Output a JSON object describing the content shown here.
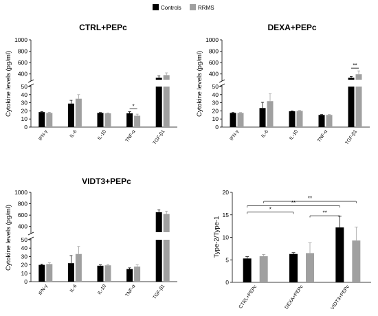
{
  "colors": {
    "controls": "#000000",
    "rrms": "#a0a0a0",
    "axis": "#000000"
  },
  "legend": {
    "controls": "Controls",
    "rrms": "RRMS"
  },
  "chart_data": [
    {
      "type": "bar",
      "title": "CTRL+PEPc",
      "ylabel": "Cytokine levels (pg/ml)",
      "categories": [
        "IFN-γ",
        "IL-6",
        "IL-10",
        "TNF-α",
        "TGF-β1"
      ],
      "y_ticks_lower": [
        "0",
        "10",
        "20",
        "30",
        "40",
        "50"
      ],
      "y_ticks_upper": [
        "400",
        "600",
        "800",
        "1000"
      ],
      "ylim_lower": [
        0,
        50
      ],
      "ylim_upper": [
        300,
        1000
      ],
      "series": [
        {
          "name": "Controls",
          "values": [
            18.5,
            29,
            17.5,
            17,
            335
          ],
          "errors": [
            0.5,
            4,
            0.5,
            2,
            30
          ]
        },
        {
          "name": "RRMS",
          "values": [
            17.5,
            35,
            17,
            14,
            380
          ],
          "errors": [
            0.8,
            5,
            0.5,
            2,
            40
          ]
        }
      ],
      "significance": [
        {
          "category": "TNF-α",
          "label": "*"
        }
      ]
    },
    {
      "type": "bar",
      "title": "DEXA+PEPc",
      "ylabel": "Cytokine levels (pg/ml)",
      "categories": [
        "IFN-γ",
        "IL-6",
        "IL-10",
        "TNF-α",
        "TGF-β1"
      ],
      "y_ticks_lower": [
        "0",
        "10",
        "20",
        "30",
        "40",
        "50"
      ],
      "y_ticks_upper": [
        "400",
        "600",
        "800",
        "1000"
      ],
      "ylim_lower": [
        0,
        50
      ],
      "ylim_upper": [
        300,
        1000
      ],
      "series": [
        {
          "name": "Controls",
          "values": [
            17.5,
            23.5,
            19.5,
            15,
            335
          ],
          "errors": [
            0.5,
            7,
            0.5,
            0.5,
            20
          ]
        },
        {
          "name": "RRMS",
          "values": [
            17.5,
            32,
            20,
            15,
            395
          ],
          "errors": [
            0.5,
            9,
            0.5,
            0.5,
            60
          ]
        }
      ],
      "significance": [
        {
          "category": "TGF-β1",
          "label": "**"
        }
      ]
    },
    {
      "type": "bar",
      "title": "VIDT3+PEPc",
      "ylabel": "Cytokine levels (pg/ml)",
      "categories": [
        "IFN-γ",
        "IL-6",
        "IL-10",
        "TNF-α",
        "TGF-β1"
      ],
      "y_ticks_lower": [
        "0",
        "10",
        "20",
        "30",
        "40",
        "50"
      ],
      "y_ticks_upper": [
        "400",
        "600",
        "800",
        "1000"
      ],
      "ylim_lower": [
        0,
        50
      ],
      "ylim_upper": [
        300,
        1000
      ],
      "series": [
        {
          "name": "Controls",
          "values": [
            20,
            22,
            19,
            15,
            650
          ],
          "errors": [
            1,
            9,
            1,
            1.5,
            40
          ]
        },
        {
          "name": "RRMS",
          "values": [
            21,
            33,
            19.5,
            18,
            620
          ],
          "errors": [
            1.5,
            9,
            1,
            2,
            50
          ]
        }
      ],
      "significance": []
    },
    {
      "type": "bar",
      "title": "",
      "ylabel": "Type-2/Type-1",
      "categories": [
        "CTRL+PEPc",
        "DEXA+PEPc",
        "VIDT3+PEPc"
      ],
      "y_ticks": [
        "0",
        "5",
        "10",
        "15",
        "20"
      ],
      "ylim": [
        0,
        20
      ],
      "series": [
        {
          "name": "Controls",
          "values": [
            5.3,
            6.3,
            12.2
          ],
          "errors": [
            0.4,
            0.3,
            2.5
          ]
        },
        {
          "name": "RRMS",
          "values": [
            5.8,
            6.5,
            9.3
          ],
          "errors": [
            0.4,
            2.3,
            3.0
          ]
        }
      ],
      "significance": [
        {
          "from": "CTRL+PEPc:Controls",
          "to": "DEXA+PEPc:Controls",
          "label": "*"
        },
        {
          "from": "DEXA+PEPc:RRMS",
          "to": "VIDT3+PEPc:Controls",
          "label": "**"
        },
        {
          "from": "CTRL+PEPc:Controls",
          "to": "VIDT3+PEPc:Controls",
          "label": "**"
        },
        {
          "from": "CTRL+PEPc:RRMS",
          "to": "VIDT3+PEPc:RRMS",
          "label": "**"
        }
      ]
    }
  ]
}
